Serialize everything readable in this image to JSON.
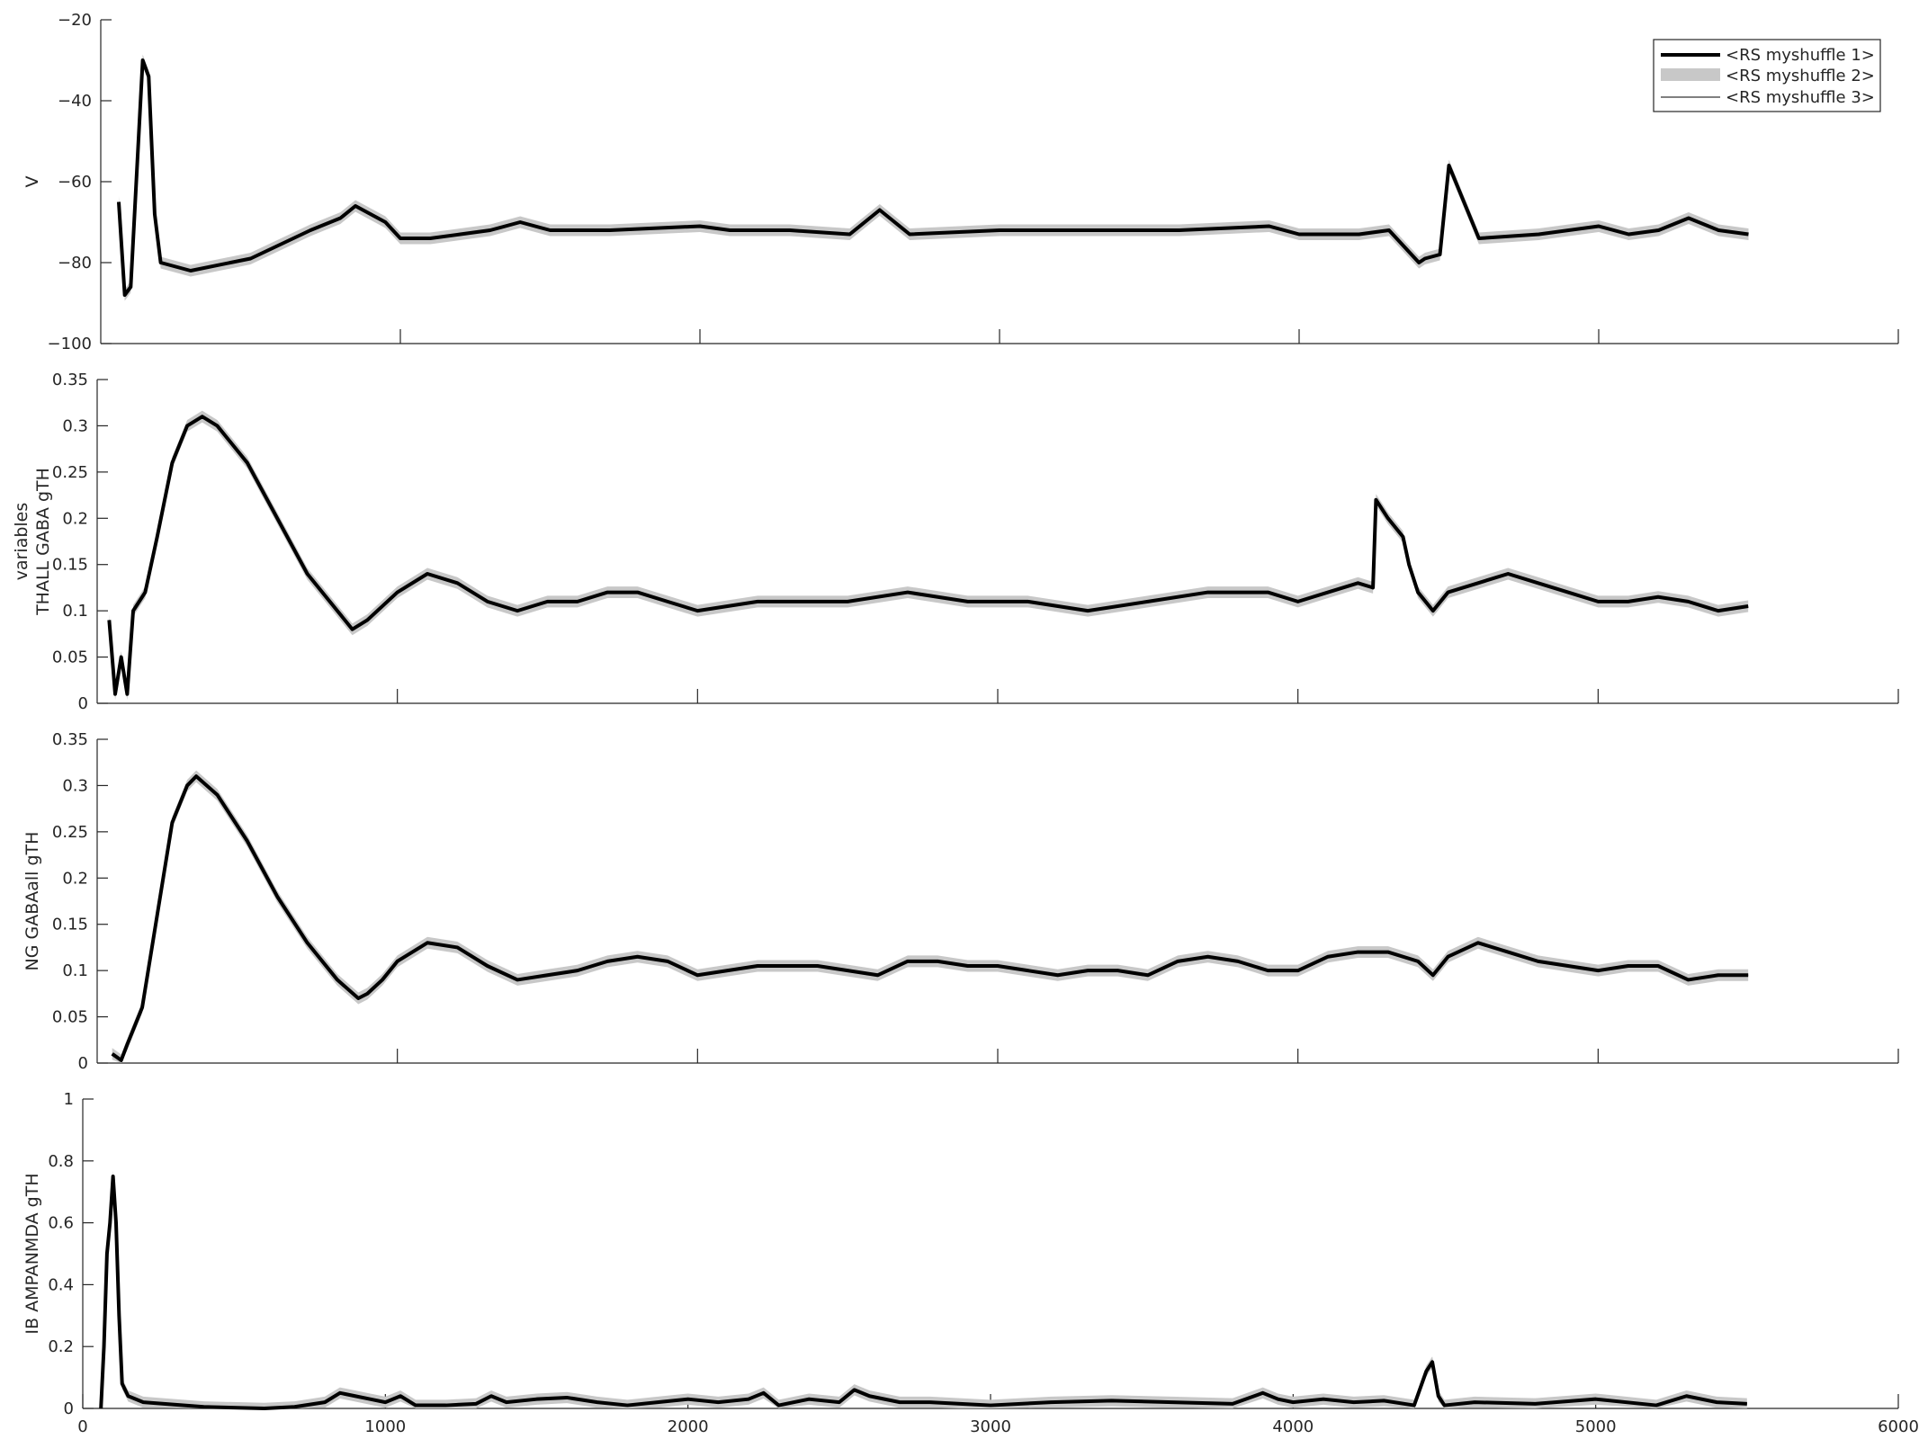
{
  "chart_data": [
    {
      "type": "line",
      "ylabel": "V",
      "xlim": [
        0,
        6000
      ],
      "ylim": [
        -100,
        -20
      ],
      "xticks": [
        1000,
        2000,
        3000,
        4000,
        5000,
        6000
      ],
      "yticks": [
        -100,
        -80,
        -60,
        -40,
        -20
      ],
      "grid": false,
      "legend": {
        "position": "top-right",
        "entries": [
          "<RS myshuffle 1>",
          "<RS myshuffle 2>",
          "<RS myshuffle 3>"
        ]
      },
      "x": [
        60,
        80,
        100,
        140,
        160,
        180,
        200,
        300,
        500,
        700,
        800,
        850,
        900,
        950,
        1000,
        1100,
        1200,
        1300,
        1400,
        1500,
        1700,
        2000,
        2100,
        2300,
        2500,
        2600,
        2700,
        3000,
        3300,
        3600,
        3900,
        4000,
        4200,
        4300,
        4400,
        4420,
        4470,
        4500,
        4600,
        4800,
        5000,
        5100,
        5200,
        5300,
        5400,
        5500
      ],
      "series": [
        {
          "values": [
            -65,
            -88,
            -86,
            -30,
            -34,
            -68,
            -80,
            -82,
            -79,
            -72,
            -69,
            -66,
            -68,
            -70,
            -74,
            -74,
            -73,
            -72,
            -70,
            -72,
            -72,
            -71,
            -72,
            -72,
            -73,
            -67,
            -73,
            -72,
            -72,
            -72,
            -71,
            -73,
            -73,
            -72,
            -80,
            -79,
            -78,
            -56,
            -74,
            -73,
            -71,
            -73,
            -72,
            -69,
            -72,
            -73
          ]
        }
      ]
    },
    {
      "type": "line",
      "ylabel": [
        "variables",
        "THALL GABA gTH"
      ],
      "xlim": [
        0,
        6000
      ],
      "ylim": [
        0,
        0.35
      ],
      "xticks": [
        1000,
        2000,
        3000,
        4000,
        5000,
        6000
      ],
      "yticks": [
        0,
        0.05,
        0.1,
        0.15,
        0.2,
        0.25,
        0.3,
        0.35
      ],
      "yticklabels": [
        "0",
        "0.05",
        "0.1",
        "0.15",
        "0.2",
        "0.25",
        "0.3",
        "0.35"
      ],
      "grid": false,
      "x": [
        40,
        60,
        80,
        100,
        120,
        160,
        200,
        250,
        300,
        350,
        400,
        500,
        600,
        700,
        800,
        850,
        900,
        1000,
        1100,
        1200,
        1300,
        1400,
        1500,
        1600,
        1700,
        1800,
        1900,
        2000,
        2200,
        2400,
        2500,
        2700,
        2900,
        3100,
        3300,
        3500,
        3700,
        3900,
        4000,
        4100,
        4200,
        4250,
        4260,
        4300,
        4350,
        4370,
        4400,
        4450,
        4500,
        4600,
        4700,
        4800,
        4900,
        5000,
        5100,
        5200,
        5300,
        5400,
        5500
      ],
      "series": [
        {
          "values": [
            0.09,
            0.01,
            0.05,
            0.01,
            0.1,
            0.12,
            0.18,
            0.26,
            0.3,
            0.31,
            0.3,
            0.26,
            0.2,
            0.14,
            0.1,
            0.08,
            0.09,
            0.12,
            0.14,
            0.13,
            0.11,
            0.1,
            0.11,
            0.11,
            0.12,
            0.12,
            0.11,
            0.1,
            0.11,
            0.11,
            0.11,
            0.12,
            0.11,
            0.11,
            0.1,
            0.11,
            0.12,
            0.12,
            0.11,
            0.12,
            0.13,
            0.125,
            0.22,
            0.2,
            0.18,
            0.15,
            0.12,
            0.1,
            0.12,
            0.13,
            0.14,
            0.13,
            0.12,
            0.11,
            0.11,
            0.115,
            0.11,
            0.1,
            0.105
          ]
        }
      ]
    },
    {
      "type": "line",
      "ylabel": "NG GABAall gTH",
      "xlim": [
        0,
        6000
      ],
      "ylim": [
        0,
        0.35
      ],
      "xticks": [
        1000,
        2000,
        3000,
        4000,
        5000,
        6000
      ],
      "yticks": [
        0,
        0.05,
        0.1,
        0.15,
        0.2,
        0.25,
        0.3,
        0.35
      ],
      "yticklabels": [
        "0",
        "0.05",
        "0.1",
        "0.15",
        "0.2",
        "0.25",
        "0.3",
        "0.35"
      ],
      "grid": false,
      "x": [
        50,
        80,
        100,
        150,
        200,
        250,
        300,
        330,
        400,
        500,
        600,
        700,
        800,
        870,
        900,
        950,
        1000,
        1100,
        1200,
        1300,
        1400,
        1500,
        1600,
        1700,
        1800,
        1900,
        2000,
        2100,
        2200,
        2300,
        2400,
        2500,
        2600,
        2700,
        2800,
        2900,
        3000,
        3100,
        3200,
        3300,
        3400,
        3500,
        3600,
        3700,
        3800,
        3900,
        4000,
        4100,
        4200,
        4300,
        4400,
        4450,
        4500,
        4600,
        4700,
        4800,
        4900,
        5000,
        5100,
        5200,
        5300,
        5400,
        5500
      ],
      "series": [
        {
          "values": [
            0.01,
            0.003,
            0.02,
            0.06,
            0.16,
            0.26,
            0.3,
            0.31,
            0.29,
            0.24,
            0.18,
            0.13,
            0.09,
            0.07,
            0.075,
            0.09,
            0.11,
            0.13,
            0.125,
            0.105,
            0.09,
            0.095,
            0.1,
            0.11,
            0.115,
            0.11,
            0.095,
            0.1,
            0.105,
            0.105,
            0.105,
            0.1,
            0.095,
            0.11,
            0.11,
            0.105,
            0.105,
            0.1,
            0.095,
            0.1,
            0.1,
            0.095,
            0.11,
            0.115,
            0.11,
            0.1,
            0.1,
            0.115,
            0.12,
            0.12,
            0.11,
            0.095,
            0.115,
            0.13,
            0.12,
            0.11,
            0.105,
            0.1,
            0.105,
            0.105,
            0.09,
            0.095,
            0.095
          ]
        }
      ]
    },
    {
      "type": "line",
      "ylabel": "IB AMPANMDA gTH",
      "xlim": [
        0,
        6000
      ],
      "ylim": [
        0,
        1
      ],
      "xticks": [
        0,
        1000,
        2000,
        3000,
        4000,
        5000,
        6000
      ],
      "yticks": [
        0,
        0.2,
        0.4,
        0.6,
        0.8,
        1
      ],
      "yticklabels": [
        "0",
        "0.2",
        "0.4",
        "0.6",
        "0.8",
        "1"
      ],
      "grid": false,
      "x": [
        60,
        70,
        80,
        90,
        100,
        110,
        120,
        130,
        150,
        200,
        400,
        600,
        700,
        800,
        850,
        900,
        950,
        1000,
        1050,
        1100,
        1200,
        1300,
        1350,
        1400,
        1500,
        1600,
        1700,
        1800,
        1900,
        2000,
        2100,
        2200,
        2250,
        2300,
        2400,
        2500,
        2550,
        2600,
        2700,
        2800,
        2900,
        3000,
        3200,
        3400,
        3600,
        3800,
        3900,
        3950,
        4000,
        4100,
        4200,
        4300,
        4400,
        4440,
        4460,
        4480,
        4500,
        4600,
        4800,
        5000,
        5200,
        5300,
        5400,
        5500
      ],
      "series": [
        {
          "values": [
            0.0,
            0.2,
            0.5,
            0.6,
            0.75,
            0.6,
            0.3,
            0.08,
            0.04,
            0.02,
            0.005,
            0.0,
            0.005,
            0.02,
            0.05,
            0.04,
            0.03,
            0.02,
            0.04,
            0.01,
            0.01,
            0.015,
            0.04,
            0.02,
            0.03,
            0.035,
            0.02,
            0.01,
            0.02,
            0.03,
            0.02,
            0.03,
            0.05,
            0.01,
            0.03,
            0.02,
            0.06,
            0.04,
            0.02,
            0.02,
            0.015,
            0.01,
            0.02,
            0.025,
            0.02,
            0.015,
            0.05,
            0.03,
            0.02,
            0.03,
            0.02,
            0.025,
            0.01,
            0.12,
            0.15,
            0.04,
            0.01,
            0.02,
            0.015,
            0.03,
            0.01,
            0.04,
            0.02,
            0.015
          ]
        }
      ]
    }
  ],
  "colors": {
    "main_line": "#000000",
    "band": "#c8c8c8",
    "axis": "#262626"
  }
}
